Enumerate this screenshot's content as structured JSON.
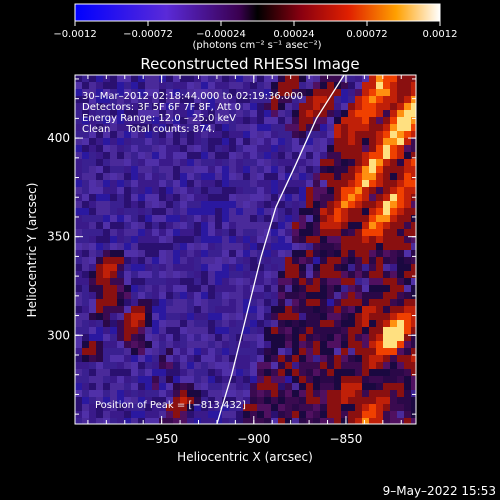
{
  "chart_data": {
    "type": "heatmap",
    "title": "Reconstructed RHESSI Image",
    "xlabel": "Heliocentric X (arcsec)",
    "ylabel": "Heliocentric Y (arcsec)",
    "xlim": [
      -997,
      -812
    ],
    "ylim": [
      255,
      432
    ],
    "x_ticks": [
      -950,
      -900,
      -850
    ],
    "y_ticks": [
      300,
      350,
      400
    ],
    "x_tick_labels": [
      "−950",
      "−900",
      "−850"
    ],
    "y_tick_labels": [
      "300",
      "350",
      "400"
    ],
    "colorbar": {
      "min": -0.0012,
      "max": 0.0012,
      "ticks": [
        -0.0012,
        -0.00072,
        -0.00024,
        0.00024,
        0.00072,
        0.0012
      ],
      "tick_labels": [
        "−0.0012",
        "−0.00072",
        "−0.00024",
        "0.00024",
        "0.00072",
        "0.0012"
      ],
      "units": "(photons cm⁻² s⁻¹ asec⁻²)"
    },
    "info_lines": [
      "30–Mar–2012 02:18:44.000 to 02:19:36.000",
      "Detectors: 3F 5F 6F 7F 8F, Att 0",
      "Energy Range: 12.0 – 25.0 keV",
      "Clean     Total counts: 874."
    ],
    "peak_label": "Position of Peak = [−813,432]",
    "limb_curve": [
      [
        -920,
        255
      ],
      [
        -912,
        280
      ],
      [
        -904,
        310
      ],
      [
        -896,
        340
      ],
      [
        -888,
        365
      ],
      [
        -878,
        385
      ],
      [
        -866,
        410
      ],
      [
        -851,
        432
      ]
    ],
    "timestamp": "9–May–2022 15:53"
  }
}
